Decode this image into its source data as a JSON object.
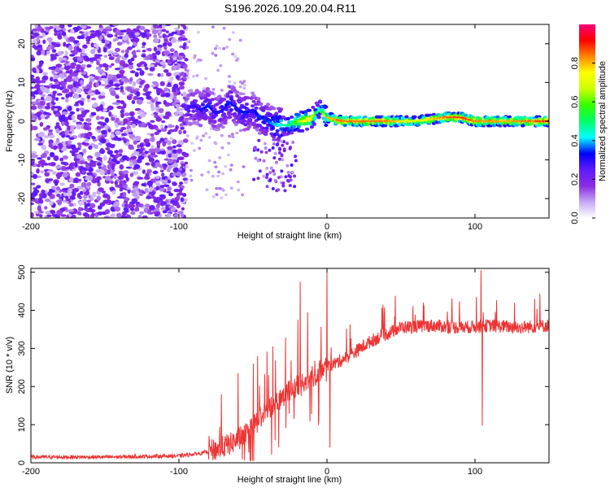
{
  "title": "S196.2026.109.20.04.R11",
  "chart_data": [
    {
      "type": "heatmap",
      "xlabel": "Height of straight line (km)",
      "ylabel": "Frequency (Hz)",
      "xlim": [
        -200,
        150
      ],
      "ylim": [
        -25,
        25
      ],
      "xticks": [
        "-200",
        "-100",
        "0",
        "100"
      ],
      "xtick_values": [
        -200,
        -100,
        0,
        100
      ],
      "yticks": [
        "-20",
        "-10",
        "0",
        "10",
        "20"
      ],
      "ytick_values": [
        -20,
        -10,
        0,
        10,
        20
      ],
      "colorbar": {
        "label": "Normalized spectral amplitude",
        "range": [
          0,
          1
        ],
        "ticks": [
          "0.0",
          "0.2",
          "0.4",
          "0.6",
          "0.8"
        ],
        "tick_values": [
          0.0,
          0.2,
          0.4,
          0.6,
          0.8
        ],
        "colors": [
          "#ffffff",
          "#c5a8f5",
          "#8a2be2",
          "#5e1aff",
          "#0000ff",
          "#00ffff",
          "#00ff66",
          "#33ff00",
          "#ccff00",
          "#ffff00",
          "#ff8800",
          "#ff0000",
          "#ff0077"
        ]
      },
      "ridge": {
        "x": [
          -95,
          -90,
          -85,
          -80,
          -75,
          -70,
          -65,
          -60,
          -55,
          -50,
          -45,
          -40,
          -35,
          -30,
          -25,
          -20,
          -15,
          -10,
          -5,
          0,
          10,
          20,
          40,
          60,
          80,
          90,
          100,
          120,
          150
        ],
        "freq": [
          3,
          4,
          3,
          4,
          2,
          3,
          5,
          3,
          2,
          3,
          1,
          0,
          -1,
          -1,
          -1,
          0,
          0,
          1,
          3,
          1,
          0,
          0,
          0,
          0,
          1,
          1,
          0,
          0,
          0
        ],
        "amplitude": [
          0.25,
          0.3,
          0.3,
          0.35,
          0.3,
          0.3,
          0.35,
          0.3,
          0.35,
          0.3,
          0.35,
          0.35,
          0.4,
          0.45,
          0.5,
          0.6,
          0.75,
          0.7,
          0.4,
          0.8,
          0.85,
          0.85,
          0.85,
          0.7,
          0.85,
          0.9,
          0.85,
          0.8,
          0.9
        ]
      },
      "noise_region": {
        "x": [
          -200,
          -95
        ],
        "freq": [
          -25,
          25
        ],
        "amplitude_max": 0.2
      }
    },
    {
      "type": "line",
      "xlabel": "Height of straight line (km)",
      "ylabel": "SNR (10 * v/v)",
      "xlim": [
        -200,
        150
      ],
      "ylim": [
        0,
        510
      ],
      "xticks": [
        "-200",
        "-100",
        "0",
        "100"
      ],
      "xtick_values": [
        -200,
        -100,
        0,
        100
      ],
      "yticks": [
        "0",
        "100",
        "200",
        "300",
        "400",
        "500"
      ],
      "ytick_values": [
        0,
        100,
        200,
        300,
        400,
        500
      ],
      "color": "#ee3333",
      "envelope": {
        "x": [
          -200,
          -150,
          -100,
          -85,
          -75,
          -65,
          -55,
          -45,
          -35,
          -25,
          -15,
          -5,
          0,
          5,
          15,
          30,
          50,
          70,
          90,
          110,
          130,
          150
        ],
        "y": [
          15,
          15,
          18,
          25,
          35,
          50,
          75,
          120,
          160,
          190,
          210,
          240,
          255,
          260,
          280,
          320,
          355,
          360,
          355,
          360,
          355,
          360
        ]
      },
      "spikes": [
        {
          "x": -18,
          "y": 475
        },
        {
          "x": 0,
          "y": 505
        },
        {
          "x": 2,
          "y": 40
        },
        {
          "x": 104,
          "y": 505
        },
        {
          "x": 105,
          "y": 97
        }
      ]
    }
  ]
}
